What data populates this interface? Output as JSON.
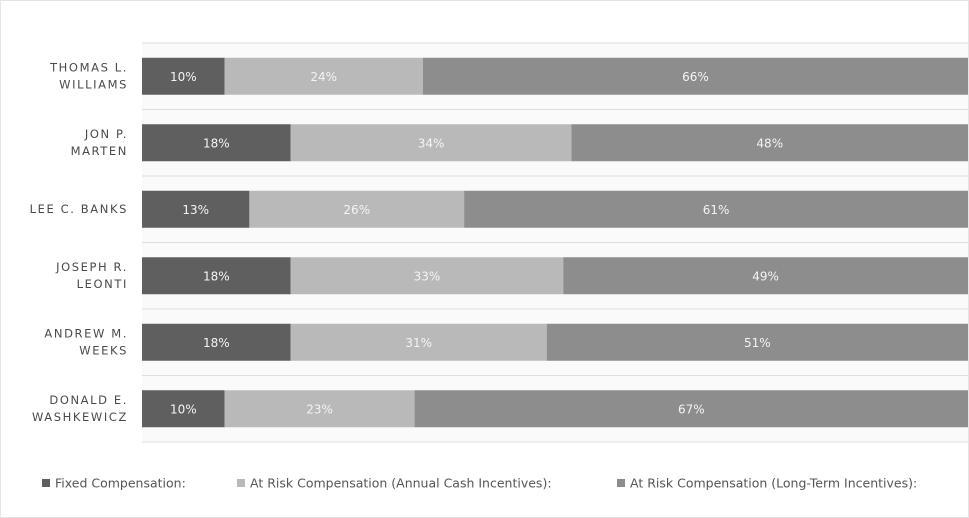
{
  "chart_data": {
    "type": "stacked-bar",
    "orientation": "horizontal",
    "categories": [
      [
        "THOMAS L.",
        "WILLIAMS"
      ],
      [
        "JON P.",
        "MARTEN"
      ],
      [
        "LEE C. BANKS"
      ],
      [
        "JOSEPH R.",
        "LEONTI"
      ],
      [
        "ANDREW M.",
        "WEEKS"
      ],
      [
        "DONALD E.",
        "WASHKEWICZ"
      ]
    ],
    "series": [
      {
        "name": "Fixed Compensation:",
        "color": "#5f5f5f",
        "values": [
          10,
          18,
          13,
          18,
          18,
          10
        ],
        "value_labels": [
          "10%",
          "18%",
          "13%",
          "18%",
          "18%",
          "10%"
        ]
      },
      {
        "name": "At Risk Compensation (Annual Cash Incentives):",
        "color": "#b9b9b9",
        "values": [
          24,
          34,
          26,
          33,
          31,
          23
        ],
        "value_labels": [
          "24%",
          "34%",
          "26%",
          "33%",
          "31%",
          "23%"
        ]
      },
      {
        "name": "At Risk Compensation (Long-Term Incentives):",
        "color": "#8d8d8d",
        "values": [
          66,
          48,
          61,
          49,
          51,
          67
        ],
        "value_labels": [
          "66%",
          "48%",
          "61%",
          "49%",
          "51%",
          "67%"
        ]
      }
    ],
    "xlim": [
      0,
      100
    ]
  }
}
